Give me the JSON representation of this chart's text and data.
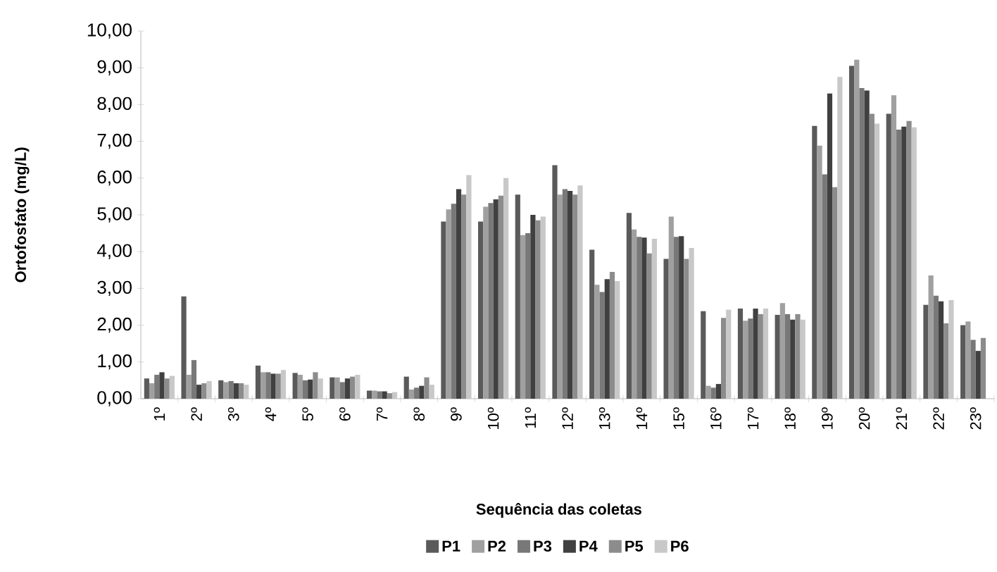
{
  "chart_data": {
    "type": "bar",
    "xlabel": "Sequência das coletas",
    "ylabel": "Ortofosfato (mg/L)",
    "categories": [
      "1º",
      "2º",
      "3º",
      "4º",
      "5º",
      "6º",
      "7º",
      "8º",
      "9º",
      "10º",
      "11º",
      "12º",
      "13º",
      "14º",
      "15º",
      "16º",
      "17º",
      "18º",
      "19º",
      "20º",
      "21º",
      "22º",
      "23º"
    ],
    "series": [
      {
        "name": "P1",
        "color": "#5a5a5a",
        "values": [
          0.55,
          2.78,
          0.5,
          0.9,
          0.7,
          0.58,
          0.22,
          0.6,
          4.82,
          4.82,
          5.55,
          6.35,
          4.05,
          5.05,
          3.8,
          2.38,
          2.45,
          2.28,
          7.42,
          9.05,
          7.75,
          2.55,
          2.0
        ]
      },
      {
        "name": "P2",
        "color": "#a0a0a0",
        "values": [
          0.42,
          0.65,
          0.45,
          0.72,
          0.65,
          0.58,
          0.22,
          0.25,
          5.15,
          5.22,
          4.45,
          5.55,
          3.1,
          4.6,
          4.95,
          0.35,
          2.12,
          2.6,
          6.88,
          9.22,
          8.25,
          3.35,
          2.1
        ]
      },
      {
        "name": "P3",
        "color": "#787878",
        "values": [
          0.65,
          1.05,
          0.48,
          0.72,
          0.5,
          0.45,
          0.2,
          0.3,
          5.3,
          5.32,
          4.5,
          5.7,
          2.9,
          4.4,
          4.4,
          0.3,
          2.18,
          2.3,
          6.1,
          8.45,
          7.32,
          2.8,
          1.6
        ]
      },
      {
        "name": "P4",
        "color": "#404040",
        "values": [
          0.72,
          0.38,
          0.42,
          0.68,
          0.52,
          0.55,
          0.2,
          0.35,
          5.7,
          5.42,
          5.0,
          5.65,
          3.25,
          4.38,
          4.42,
          0.4,
          2.45,
          2.15,
          8.3,
          8.38,
          7.4,
          2.65,
          1.3
        ]
      },
      {
        "name": "P5",
        "color": "#8c8c8c",
        "values": [
          0.55,
          0.42,
          0.42,
          0.68,
          0.72,
          0.6,
          0.15,
          0.58,
          5.55,
          5.52,
          4.85,
          5.55,
          3.45,
          3.95,
          3.8,
          2.2,
          2.3,
          2.3,
          5.75,
          7.75,
          7.55,
          2.05,
          1.65
        ]
      },
      {
        "name": "P6",
        "color": "#c8c8c8",
        "values": [
          0.62,
          0.48,
          0.38,
          0.78,
          0.55,
          0.65,
          0.18,
          0.38,
          6.08,
          6.0,
          4.95,
          5.8,
          3.2,
          4.35,
          4.1,
          2.42,
          2.45,
          2.15,
          8.75,
          7.48,
          7.38,
          2.68,
          null
        ]
      }
    ],
    "ylim": [
      0,
      10
    ],
    "yticks": [
      {
        "value": 0,
        "label": "0,00"
      },
      {
        "value": 1,
        "label": "1,00"
      },
      {
        "value": 2,
        "label": "2,00"
      },
      {
        "value": 3,
        "label": "3,00"
      },
      {
        "value": 4,
        "label": "4,00"
      },
      {
        "value": 5,
        "label": "5,00"
      },
      {
        "value": 6,
        "label": "6,00"
      },
      {
        "value": 7,
        "label": "7,00"
      },
      {
        "value": 8,
        "label": "8,00"
      },
      {
        "value": 9,
        "label": "9,00"
      },
      {
        "value": 10,
        "label": "10,00"
      }
    ],
    "legend": "bottom"
  }
}
